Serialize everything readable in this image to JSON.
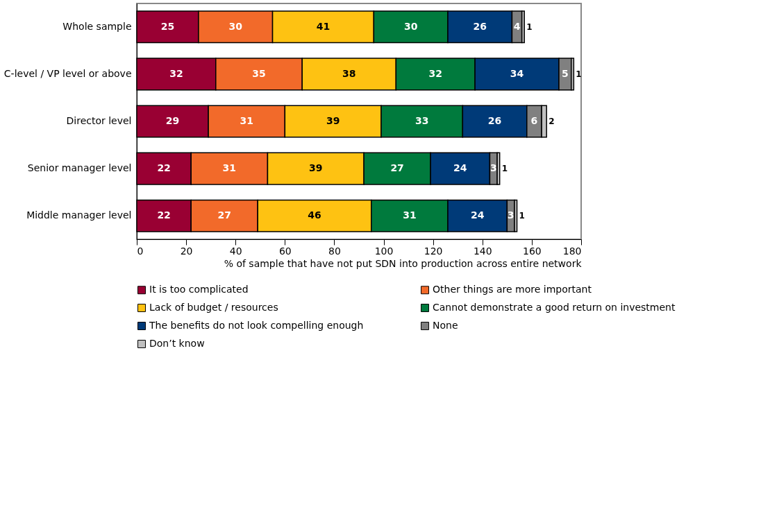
{
  "chart_data": {
    "type": "bar",
    "orientation": "horizontal",
    "stacked": true,
    "data_labels": true,
    "grid": false,
    "legend": "bottom",
    "xlabel": "% of sample that have not put SDN into production across entire network",
    "categories": [
      "Whole sample",
      "C-level / VP level or above",
      "Director level",
      "Senior manager level",
      "Middle manager level"
    ],
    "xlim": [
      0,
      180
    ],
    "xticks": [
      0,
      20,
      40,
      60,
      80,
      100,
      120,
      140,
      160,
      180
    ],
    "series": [
      {
        "name": "It is too complicated",
        "color": "#990033",
        "values": [
          25,
          32,
          29,
          22,
          22
        ]
      },
      {
        "name": "Other things are more important",
        "color": "#f26a2a",
        "values": [
          30,
          35,
          31,
          31,
          27
        ]
      },
      {
        "name": "Lack of budget / resources",
        "color": "#fec212",
        "values": [
          41,
          38,
          39,
          39,
          46
        ]
      },
      {
        "name": "Cannot demonstrate a good return on investment",
        "color": "#007a3d",
        "values": [
          30,
          32,
          33,
          27,
          31
        ]
      },
      {
        "name": "The benefits do not look compelling enough",
        "color": "#003a78",
        "values": [
          26,
          34,
          26,
          24,
          24
        ]
      },
      {
        "name": "None",
        "color": "#808080",
        "values": [
          4,
          5,
          6,
          3,
          3
        ]
      },
      {
        "name": "Don’t know",
        "color": "#c0c0c0",
        "values": [
          1,
          1,
          2,
          1,
          1
        ]
      }
    ]
  }
}
